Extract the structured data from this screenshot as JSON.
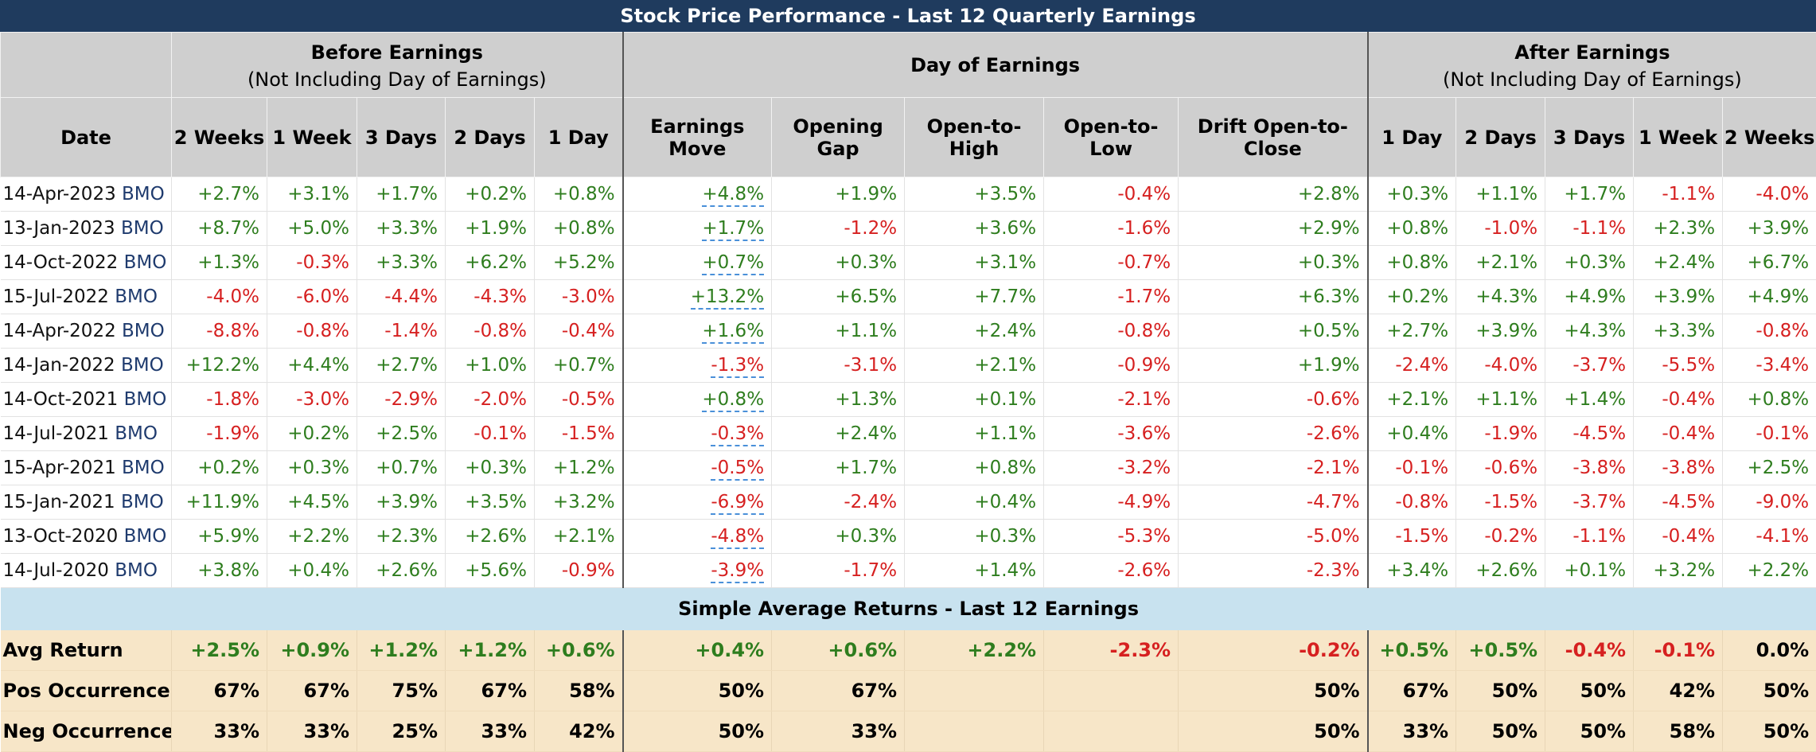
{
  "title": "Stock Price Performance - Last 12 Quarterly Earnings",
  "groups": {
    "before": {
      "line1": "Before Earnings",
      "line2": "(Not Including Day of Earnings)"
    },
    "day": {
      "line1": "Day of Earnings"
    },
    "after": {
      "line1": "After Earnings",
      "line2": "(Not Including Day of Earnings)"
    }
  },
  "columns": [
    "Date",
    "2 Weeks",
    "1 Week",
    "3 Days",
    "2 Days",
    "1 Day",
    "Earnings Move",
    "Opening Gap",
    "Open-to-High",
    "Open-to-Low",
    "Drift Open-to-Close",
    "1 Day",
    "2 Days",
    "3 Days",
    "1 Week",
    "2 Weeks"
  ],
  "colors": {
    "positive": "#2e7d1e",
    "negative": "#d62020",
    "header": "#1f3b5e",
    "summary_bg": "#f7e6c8",
    "avg_header_bg": "#c8e2ef"
  },
  "rows": [
    {
      "date": "14-Apr-2023",
      "ticker": "BMO",
      "values": [
        "+2.7%",
        "+3.1%",
        "+1.7%",
        "+0.2%",
        "+0.8%",
        "+4.8%",
        "+1.9%",
        "+3.5%",
        "-0.4%",
        "+2.8%",
        "+0.3%",
        "+1.1%",
        "+1.7%",
        "-1.1%",
        "-4.0%"
      ]
    },
    {
      "date": "13-Jan-2023",
      "ticker": "BMO",
      "values": [
        "+8.7%",
        "+5.0%",
        "+3.3%",
        "+1.9%",
        "+0.8%",
        "+1.7%",
        "-1.2%",
        "+3.6%",
        "-1.6%",
        "+2.9%",
        "+0.8%",
        "-1.0%",
        "-1.1%",
        "+2.3%",
        "+3.9%"
      ]
    },
    {
      "date": "14-Oct-2022",
      "ticker": "BMO",
      "values": [
        "+1.3%",
        "-0.3%",
        "+3.3%",
        "+6.2%",
        "+5.2%",
        "+0.7%",
        "+0.3%",
        "+3.1%",
        "-0.7%",
        "+0.3%",
        "+0.8%",
        "+2.1%",
        "+0.3%",
        "+2.4%",
        "+6.7%"
      ]
    },
    {
      "date": "15-Jul-2022",
      "ticker": "BMO",
      "values": [
        "-4.0%",
        "-6.0%",
        "-4.4%",
        "-4.3%",
        "-3.0%",
        "+13.2%",
        "+6.5%",
        "+7.7%",
        "-1.7%",
        "+6.3%",
        "+0.2%",
        "+4.3%",
        "+4.9%",
        "+3.9%",
        "+4.9%"
      ]
    },
    {
      "date": "14-Apr-2022",
      "ticker": "BMO",
      "values": [
        "-8.8%",
        "-0.8%",
        "-1.4%",
        "-0.8%",
        "-0.4%",
        "+1.6%",
        "+1.1%",
        "+2.4%",
        "-0.8%",
        "+0.5%",
        "+2.7%",
        "+3.9%",
        "+4.3%",
        "+3.3%",
        "-0.8%"
      ]
    },
    {
      "date": "14-Jan-2022",
      "ticker": "BMO",
      "values": [
        "+12.2%",
        "+4.4%",
        "+2.7%",
        "+1.0%",
        "+0.7%",
        "-1.3%",
        "-3.1%",
        "+2.1%",
        "-0.9%",
        "+1.9%",
        "-2.4%",
        "-4.0%",
        "-3.7%",
        "-5.5%",
        "-3.4%"
      ]
    },
    {
      "date": "14-Oct-2021",
      "ticker": "BMO",
      "values": [
        "-1.8%",
        "-3.0%",
        "-2.9%",
        "-2.0%",
        "-0.5%",
        "+0.8%",
        "+1.3%",
        "+0.1%",
        "-2.1%",
        "-0.6%",
        "+2.1%",
        "+1.1%",
        "+1.4%",
        "-0.4%",
        "+0.8%"
      ]
    },
    {
      "date": "14-Jul-2021",
      "ticker": "BMO",
      "values": [
        "-1.9%",
        "+0.2%",
        "+2.5%",
        "-0.1%",
        "-1.5%",
        "-0.3%",
        "+2.4%",
        "+1.1%",
        "-3.6%",
        "-2.6%",
        "+0.4%",
        "-1.9%",
        "-4.5%",
        "-0.4%",
        "-0.1%"
      ]
    },
    {
      "date": "15-Apr-2021",
      "ticker": "BMO",
      "values": [
        "+0.2%",
        "+0.3%",
        "+0.7%",
        "+0.3%",
        "+1.2%",
        "-0.5%",
        "+1.7%",
        "+0.8%",
        "-3.2%",
        "-2.1%",
        "-0.1%",
        "-0.6%",
        "-3.8%",
        "-3.8%",
        "+2.5%"
      ]
    },
    {
      "date": "15-Jan-2021",
      "ticker": "BMO",
      "values": [
        "+11.9%",
        "+4.5%",
        "+3.9%",
        "+3.5%",
        "+3.2%",
        "-6.9%",
        "-2.4%",
        "+0.4%",
        "-4.9%",
        "-4.7%",
        "-0.8%",
        "-1.5%",
        "-3.7%",
        "-4.5%",
        "-9.0%"
      ]
    },
    {
      "date": "13-Oct-2020",
      "ticker": "BMO",
      "values": [
        "+5.9%",
        "+2.2%",
        "+2.3%",
        "+2.6%",
        "+2.1%",
        "-4.8%",
        "+0.3%",
        "+0.3%",
        "-5.3%",
        "-5.0%",
        "-1.5%",
        "-0.2%",
        "-1.1%",
        "-0.4%",
        "-4.1%"
      ]
    },
    {
      "date": "14-Jul-2020",
      "ticker": "BMO",
      "values": [
        "+3.8%",
        "+0.4%",
        "+2.6%",
        "+5.6%",
        "-0.9%",
        "-3.9%",
        "-1.7%",
        "+1.4%",
        "-2.6%",
        "-2.3%",
        "+3.4%",
        "+2.6%",
        "+0.1%",
        "+3.2%",
        "+2.2%"
      ]
    }
  ],
  "summary_title": "Simple Average Returns - Last 12 Earnings",
  "summary": [
    {
      "label": "Avg Return",
      "colored": true,
      "values": [
        "+2.5%",
        "+0.9%",
        "+1.2%",
        "+1.2%",
        "+0.6%",
        "+0.4%",
        "+0.6%",
        "+2.2%",
        "-2.3%",
        "-0.2%",
        "+0.5%",
        "+0.5%",
        "-0.4%",
        "-0.1%",
        "0.0%"
      ]
    },
    {
      "label": "Pos Occurrences",
      "colored": false,
      "values": [
        "67%",
        "67%",
        "75%",
        "67%",
        "58%",
        "50%",
        "67%",
        "",
        "",
        "50%",
        "67%",
        "50%",
        "50%",
        "42%",
        "50%"
      ]
    },
    {
      "label": "Neg Occurrences",
      "colored": false,
      "values": [
        "33%",
        "33%",
        "25%",
        "33%",
        "42%",
        "50%",
        "33%",
        "",
        "",
        "50%",
        "33%",
        "50%",
        "50%",
        "58%",
        "50%"
      ]
    }
  ]
}
